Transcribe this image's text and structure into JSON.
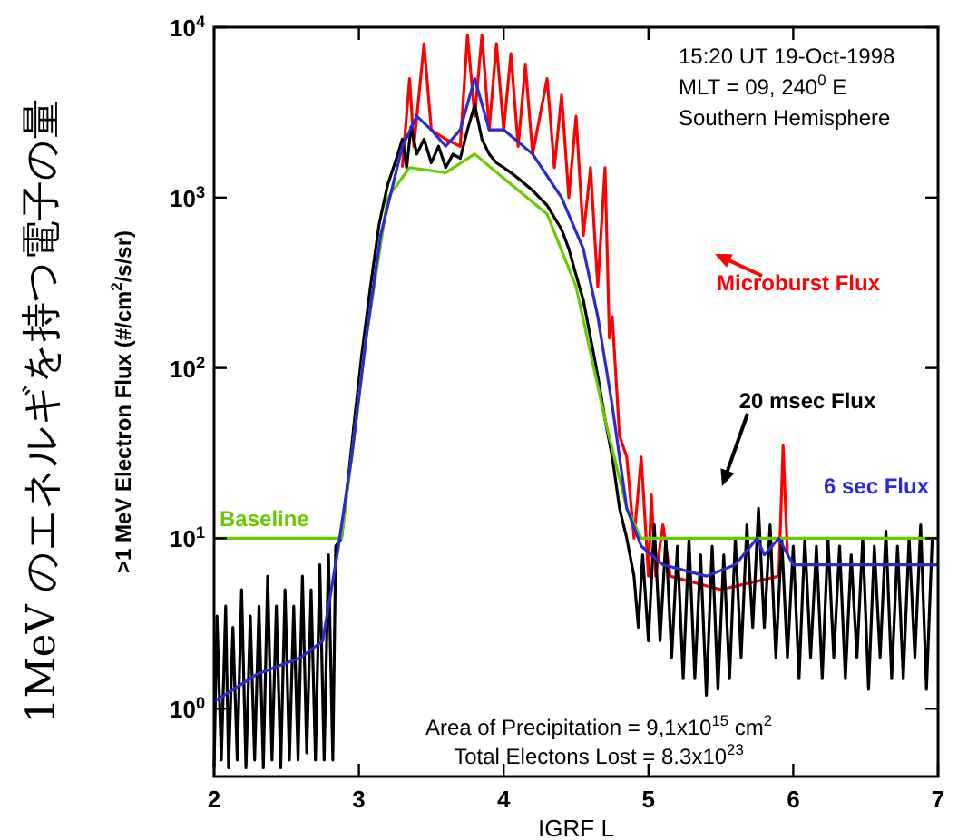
{
  "chart_data": {
    "type": "line",
    "xlabel": "IGRF L",
    "ylabel": ">1 MeV Electron Flux (#/cm$^{2}$/s/sr)",
    "log": "y",
    "legend": "right",
    "xlim": [
      2,
      7
    ],
    "xticks": [
      2,
      3,
      4,
      5,
      6,
      7
    ],
    "ylim": [
      0.4,
      10000
    ],
    "yticks": [
      {
        "value": 1,
        "label": "10$^{0}$"
      },
      {
        "value": 10,
        "label": "10$^{1}$"
      },
      {
        "value": 100,
        "label": "10$^{2}$"
      },
      {
        "value": 1000,
        "label": "10$^{3}$"
      },
      {
        "value": 10000,
        "label": "10$^{4}$"
      }
    ],
    "annotations": [
      "15:20 UT 19-Oct-1998",
      "MLT = 09, 240$^{0}$ E",
      "Southern Hemisphere",
      "Area of Precipitation = 9,1x10$^{15}$ cm$^{2}$",
      "Total Electons Lost = 8.3x10$^{23}$",
      "1MeV のエネルギを持つ電子の量"
    ],
    "series": [
      {
        "name": "Microburst Flux",
        "color": "#ff0000",
        "x": [
          3.3,
          3.35,
          3.38,
          3.45,
          3.5,
          3.6,
          3.7,
          3.75,
          3.8,
          3.85,
          3.9,
          3.95,
          4.0,
          4.05,
          4.1,
          4.15,
          4.2,
          4.3,
          4.35,
          4.4,
          4.45,
          4.5,
          4.55,
          4.6,
          4.65,
          4.7,
          4.73,
          4.75,
          4.8,
          4.85,
          4.9,
          4.95,
          5.0,
          5.02,
          5.05,
          5.1,
          5.15,
          5.5,
          5.9,
          5.93,
          5.96
        ],
        "values": [
          1500,
          5000,
          2000,
          8000,
          2500,
          2200,
          2000,
          9000,
          3000,
          9000,
          2500,
          8000,
          2500,
          7000,
          2000,
          6000,
          1800,
          5000,
          1500,
          4000,
          1000,
          3000,
          600,
          1500,
          300,
          1500,
          150,
          200,
          40,
          30,
          10,
          30,
          6,
          18,
          6,
          12,
          6,
          5,
          6,
          35,
          8
        ]
      },
      {
        "name": "20 msec Flux",
        "color": "#000000",
        "x": [
          2.0,
          2.02,
          2.05,
          2.08,
          2.1,
          2.13,
          2.16,
          2.19,
          2.22,
          2.25,
          2.28,
          2.31,
          2.34,
          2.37,
          2.4,
          2.43,
          2.46,
          2.49,
          2.52,
          2.55,
          2.58,
          2.61,
          2.64,
          2.67,
          2.7,
          2.73,
          2.76,
          2.79,
          2.82,
          2.84,
          2.88,
          2.92,
          2.97,
          3.02,
          3.08,
          3.14,
          3.2,
          3.26,
          3.3,
          3.33,
          3.36,
          3.4,
          3.45,
          3.5,
          3.55,
          3.6,
          3.65,
          3.7,
          3.75,
          3.8,
          3.85,
          3.9,
          3.95,
          4.0,
          4.05,
          4.1,
          4.2,
          4.3,
          4.4,
          4.45,
          4.5,
          4.55,
          4.6,
          4.65,
          4.7,
          4.75,
          4.8,
          4.85,
          4.9,
          4.93,
          4.96,
          5.0,
          5.04,
          5.08,
          5.12,
          5.16,
          5.2,
          5.24,
          5.28,
          5.32,
          5.36,
          5.4,
          5.44,
          5.48,
          5.52,
          5.56,
          5.6,
          5.64,
          5.68,
          5.72,
          5.76,
          5.8,
          5.84,
          5.88,
          5.92,
          5.96,
          6.0,
          6.04,
          6.08,
          6.12,
          6.16,
          6.2,
          6.24,
          6.28,
          6.32,
          6.36,
          6.4,
          6.44,
          6.48,
          6.52,
          6.56,
          6.6,
          6.64,
          6.68,
          6.72,
          6.76,
          6.8,
          6.84,
          6.88,
          6.92,
          6.96
        ],
        "values": [
          0.45,
          3.5,
          0.5,
          4,
          0.45,
          3,
          0.5,
          5,
          0.45,
          3.5,
          0.5,
          4,
          0.45,
          6,
          0.5,
          4,
          0.45,
          5,
          0.5,
          4,
          0.5,
          6,
          0.55,
          5,
          0.5,
          7,
          0.5,
          8,
          0.5,
          9,
          10,
          20,
          50,
          120,
          300,
          700,
          1200,
          1700,
          2200,
          1500,
          2600,
          1800,
          2200,
          1600,
          2000,
          1500,
          1800,
          1700,
          2500,
          3500,
          2200,
          1800,
          1600,
          1500,
          1400,
          1300,
          1100,
          900,
          650,
          500,
          350,
          250,
          150,
          90,
          50,
          30,
          15,
          10,
          6,
          3,
          8,
          2.5,
          12,
          2.5,
          10,
          2,
          9,
          1.5,
          10,
          1.5,
          8,
          1.2,
          9,
          1.3,
          8,
          1.5,
          10,
          2,
          12,
          3,
          15,
          3,
          12,
          2,
          10,
          2,
          9,
          1.5,
          10,
          2,
          9,
          1.5,
          10,
          2,
          9,
          1.5,
          8,
          2,
          10,
          1.3,
          9,
          2,
          11,
          1.5,
          9,
          1.5,
          10,
          2,
          12,
          1.3,
          10
        ]
      },
      {
        "name": "Baseline",
        "color": "#66cc00",
        "x": [
          2.0,
          2.88,
          2.95,
          3.05,
          3.2,
          3.35,
          3.6,
          3.8,
          4.0,
          4.3,
          4.5,
          4.7,
          4.85,
          4.95,
          7.0
        ],
        "values": [
          10,
          10,
          30,
          150,
          1000,
          1500,
          1400,
          1800,
          1300,
          800,
          300,
          50,
          15,
          10,
          10
        ]
      },
      {
        "name": "6 sec Flux",
        "color": "#2b2bd0",
        "x": [
          2.0,
          2.3,
          2.6,
          2.75,
          2.85,
          2.95,
          3.05,
          3.15,
          3.3,
          3.4,
          3.5,
          3.6,
          3.7,
          3.8,
          3.9,
          4.0,
          4.2,
          4.4,
          4.55,
          4.65,
          4.75,
          4.85,
          4.95,
          5.1,
          5.4,
          5.6,
          5.75,
          5.8,
          5.9,
          6.0,
          6.2,
          7.0
        ],
        "values": [
          1.1,
          1.6,
          2,
          2.5,
          8,
          30,
          150,
          600,
          2000,
          3000,
          2500,
          2000,
          2500,
          5000,
          2500,
          2500,
          1800,
          1000,
          500,
          200,
          60,
          15,
          9,
          7,
          6,
          7,
          10,
          8,
          10,
          7,
          7,
          7
        ]
      }
    ]
  }
}
